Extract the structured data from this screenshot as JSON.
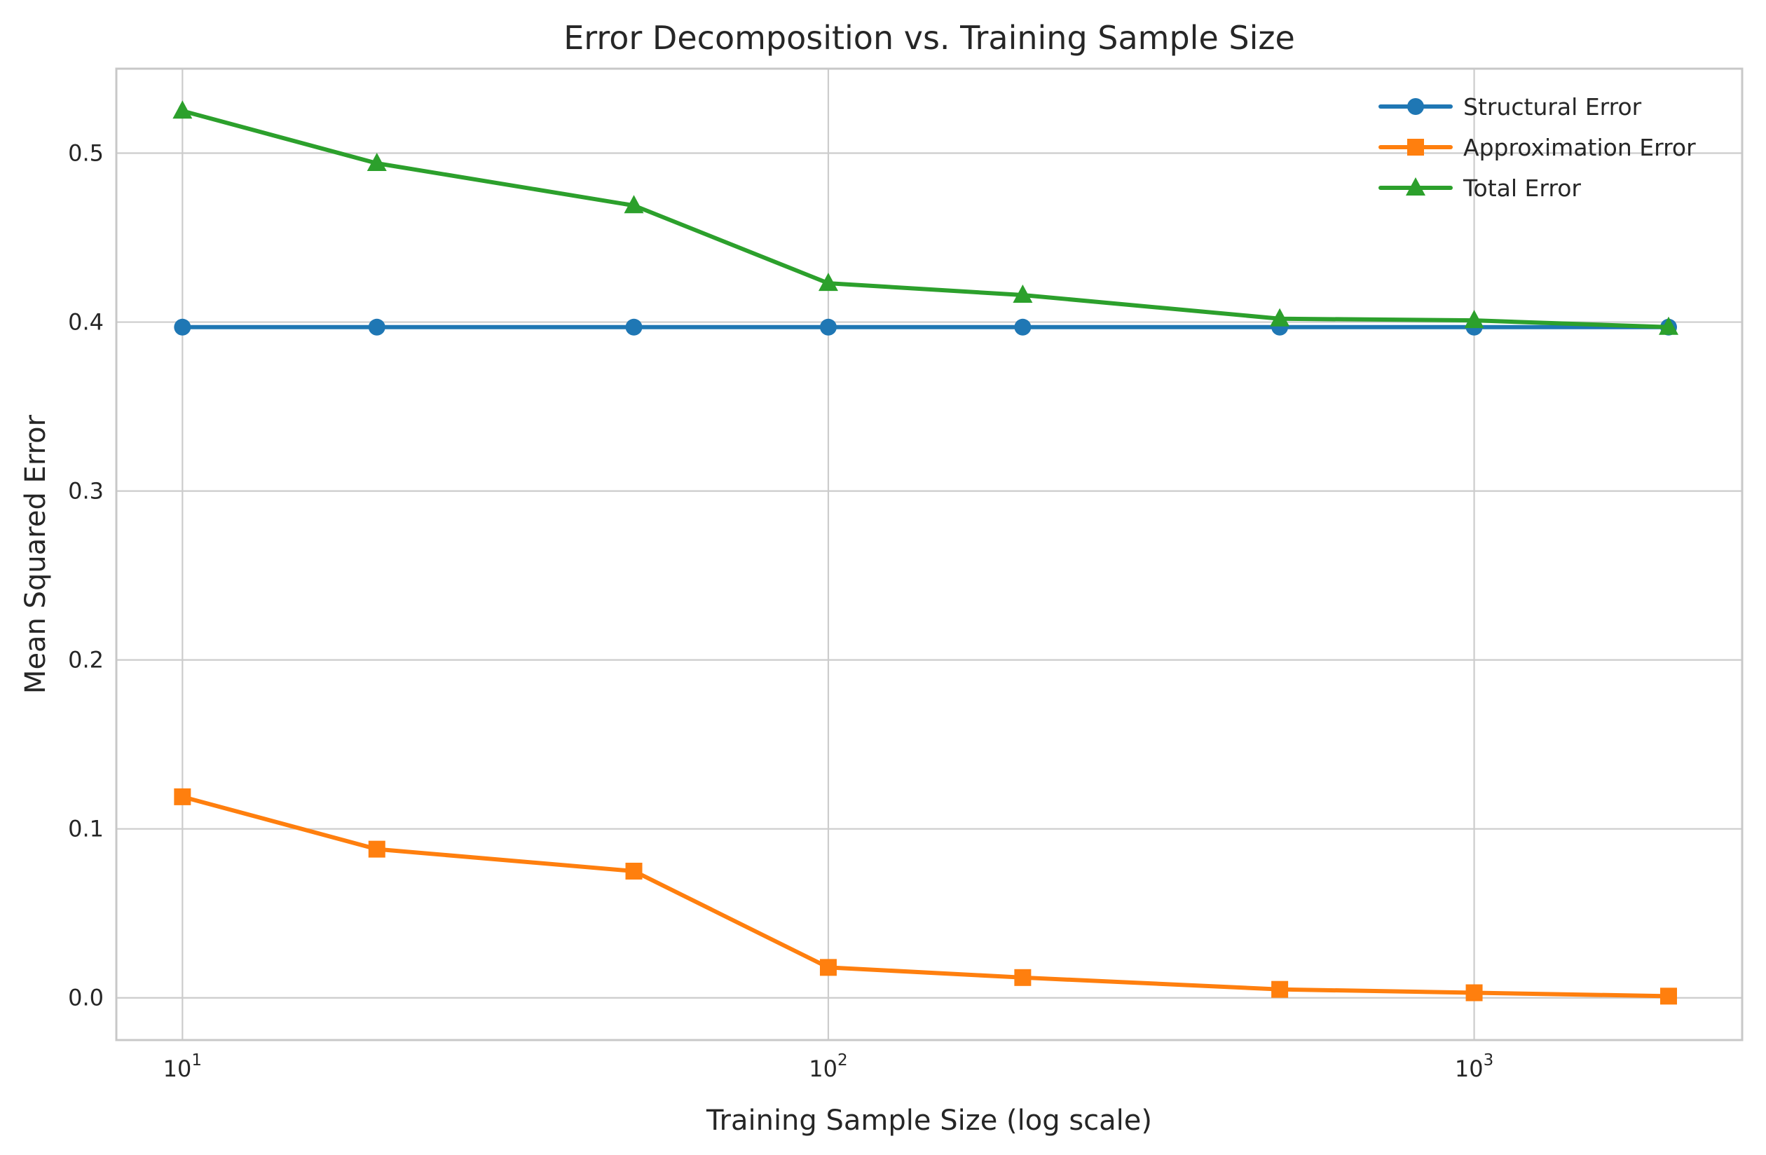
{
  "chart_data": {
    "type": "line",
    "title": "Error Decomposition vs. Training Sample Size",
    "xlabel": "Training Sample Size (log scale)",
    "ylabel": "Mean Squared Error",
    "xscale": "log",
    "xlim": [
      7.9,
      2600
    ],
    "ylim": [
      -0.025,
      0.55
    ],
    "xticks": [
      {
        "value": 10,
        "base": "10",
        "exp": "1"
      },
      {
        "value": 100,
        "base": "10",
        "exp": "2"
      },
      {
        "value": 1000,
        "base": "10",
        "exp": "3"
      }
    ],
    "yticks": [
      {
        "value": 0.0,
        "label": "0.0"
      },
      {
        "value": 0.1,
        "label": "0.1"
      },
      {
        "value": 0.2,
        "label": "0.2"
      },
      {
        "value": 0.3,
        "label": "0.3"
      },
      {
        "value": 0.4,
        "label": "0.4"
      },
      {
        "value": 0.5,
        "label": "0.5"
      }
    ],
    "grid": true,
    "legend_position": "top-right",
    "x": [
      10,
      20,
      50,
      100,
      200,
      500,
      1000,
      2000
    ],
    "series": [
      {
        "name": "Structural Error",
        "color": "#1f77b4",
        "marker": "circle",
        "values": [
          0.397,
          0.397,
          0.397,
          0.397,
          0.397,
          0.397,
          0.397,
          0.397
        ]
      },
      {
        "name": "Approximation Error",
        "color": "#ff7f0e",
        "marker": "square",
        "values": [
          0.119,
          0.088,
          0.075,
          0.018,
          0.012,
          0.005,
          0.003,
          0.001
        ]
      },
      {
        "name": "Total Error",
        "color": "#2ca02c",
        "marker": "triangle",
        "values": [
          0.525,
          0.494,
          0.469,
          0.423,
          0.416,
          0.402,
          0.401,
          0.397
        ]
      }
    ]
  }
}
